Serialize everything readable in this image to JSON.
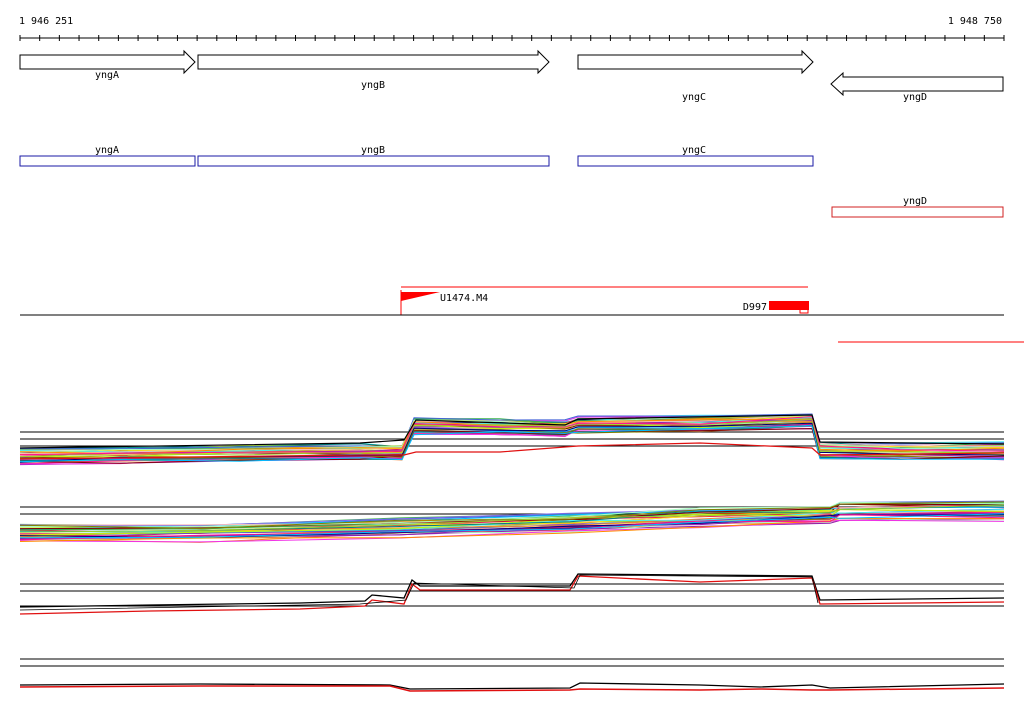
{
  "ruler": {
    "start_label": "1 946 251",
    "end_label": "1 948 750"
  },
  "genes": [
    {
      "name": "yngA",
      "strand": "forward"
    },
    {
      "name": "yngB",
      "strand": "forward"
    },
    {
      "name": "yngC",
      "strand": "forward"
    },
    {
      "name": "yngD",
      "strand": "reverse"
    }
  ],
  "cds_boxes": [
    {
      "name": "yngA",
      "color": "#1a1aa6"
    },
    {
      "name": "yngB",
      "color": "#1a1aa6"
    },
    {
      "name": "yngC",
      "color": "#1a1aa6"
    },
    {
      "name": "yngD",
      "color": "#d02020"
    }
  ],
  "features": [
    {
      "label": "U1474.M4",
      "color": "#ff0000"
    },
    {
      "label": "D997",
      "color": "#ff0000"
    }
  ],
  "colors": {
    "accent_red": "#ff0000",
    "track_black": "#000000",
    "cds_blue": "#1a1aa6"
  }
}
